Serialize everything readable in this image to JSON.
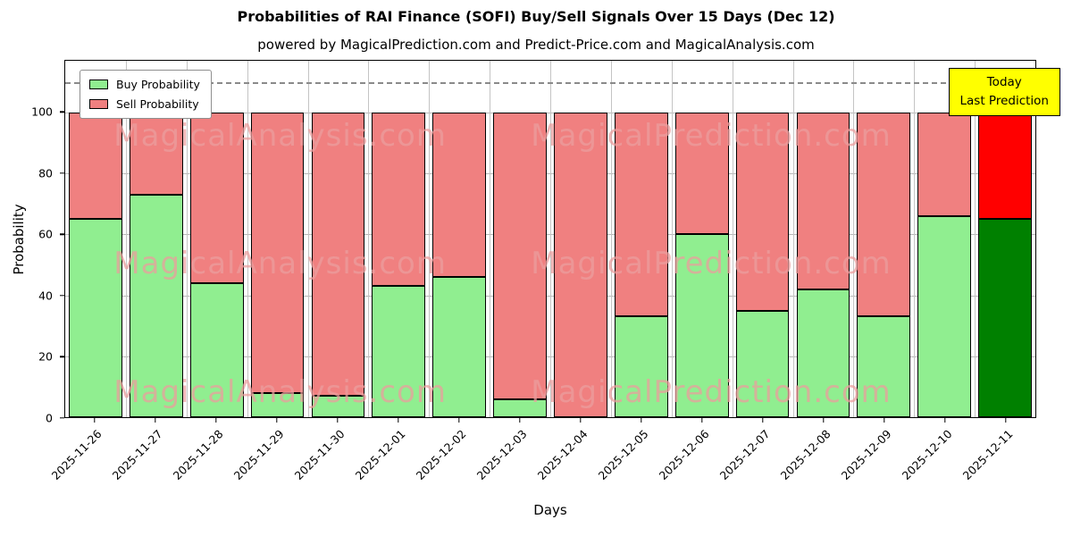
{
  "title": "Probabilities of RAI Finance (SOFI) Buy/Sell Signals Over 15 Days (Dec 12)",
  "subtitle": "powered by MagicalPrediction.com and Predict-Price.com and MagicalAnalysis.com",
  "xlabel": "Days",
  "ylabel": "Probability",
  "legend": {
    "buy_label": "Buy Probability",
    "sell_label": "Sell Probability"
  },
  "annotation": {
    "line1": "Today",
    "line2": "Last Prediction",
    "background": "#ffff00"
  },
  "watermarks": {
    "left_text": "MagicalAnalysis.com",
    "right_text": "MagicalPrediction.com"
  },
  "chart_data": {
    "type": "bar",
    "stacked": true,
    "categories": [
      "2025-11-26",
      "2025-11-27",
      "2025-11-28",
      "2025-11-29",
      "2025-11-30",
      "2025-12-01",
      "2025-12-02",
      "2025-12-03",
      "2025-12-04",
      "2025-12-05",
      "2025-12-06",
      "2025-12-07",
      "2025-12-08",
      "2025-12-09",
      "2025-12-10",
      "2025-12-11"
    ],
    "series": [
      {
        "name": "Buy Probability",
        "color": "#90ee90",
        "values": [
          65,
          73,
          44,
          8,
          7,
          43,
          46,
          6,
          0,
          33,
          60,
          35,
          42,
          33,
          66,
          65
        ]
      },
      {
        "name": "Sell Probability",
        "color": "#f08080",
        "values": [
          35,
          27,
          56,
          92,
          93,
          57,
          54,
          94,
          100,
          67,
          40,
          65,
          58,
          67,
          34,
          35
        ]
      }
    ],
    "today_colors": {
      "buy": "#008000",
      "sell": "#ff0000"
    },
    "ylim": [
      0,
      117
    ],
    "yticks": [
      0,
      20,
      40,
      60,
      80,
      100
    ],
    "dashed_line_y": 110,
    "grid": true,
    "legend_position": "upper left"
  }
}
